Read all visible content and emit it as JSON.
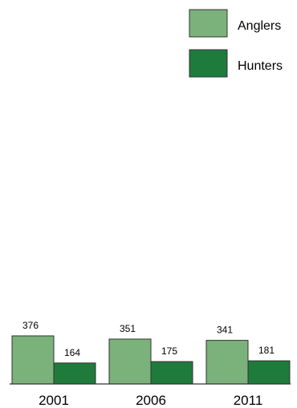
{
  "chart_data": {
    "type": "bar",
    "title": "",
    "xlabel": "",
    "ylabel": "",
    "categories": [
      "2001",
      "2006",
      "2011"
    ],
    "series": [
      {
        "name": "Anglers",
        "values": [
          376,
          351,
          341
        ],
        "color": "#7bb27b"
      },
      {
        "name": "Hunters",
        "values": [
          164,
          175,
          181
        ],
        "color": "#1e7b3c"
      }
    ],
    "ylim": [
      0,
      376
    ],
    "grid": false,
    "legend_position": "top-right",
    "bar_outline_color": "#333333",
    "axis_color": "#333333"
  }
}
